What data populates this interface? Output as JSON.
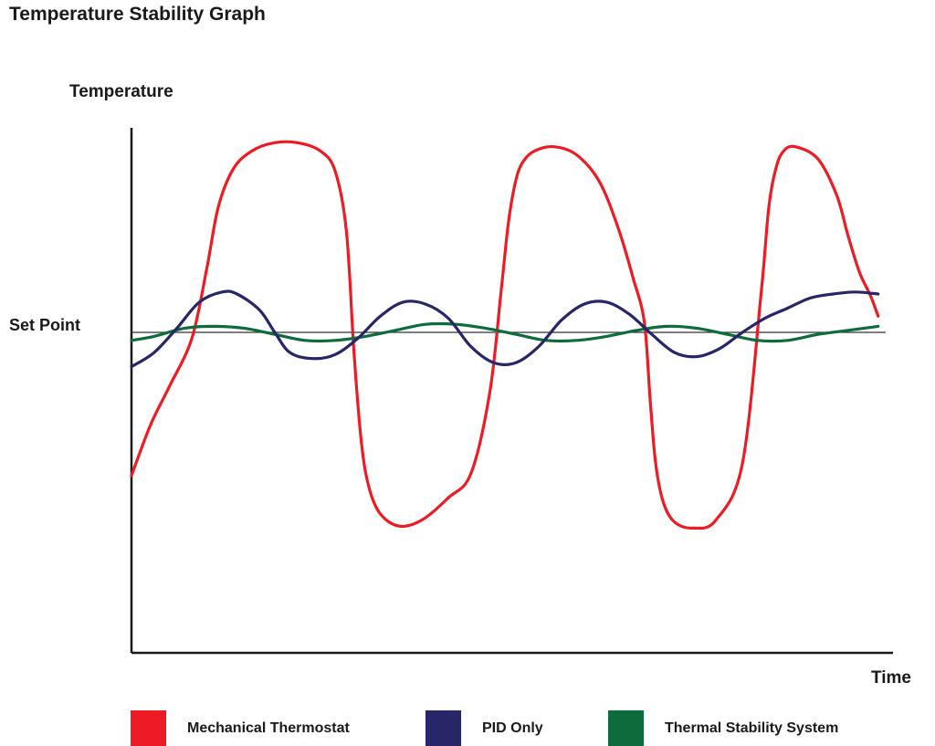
{
  "chart_data": {
    "type": "line",
    "title": "Temperature Stability Graph",
    "ylabel": "Temperature",
    "xlabel": "Time",
    "reference_line": {
      "label": "Set Point",
      "value": 0
    },
    "ylim": [
      -1.0,
      1.0
    ],
    "xlim": [
      0,
      100
    ],
    "grid": false,
    "legend_position": "bottom",
    "series": [
      {
        "name": "Mechanical Thermostat",
        "color": "#ED1C24",
        "x": [
          0,
          2.5,
          5,
          8,
          10,
          11.5,
          13.5,
          16,
          19,
          22,
          25,
          27,
          28.5,
          29.5,
          30.5,
          31.5,
          33,
          35.5,
          38.5,
          42,
          45,
          47.5,
          49,
          50,
          51,
          52,
          53.5,
          56,
          59,
          62,
          64.5,
          66.5,
          68,
          68.8,
          69.5,
          70.5,
          72,
          74.5,
          77.5,
          81,
          83.5,
          84.5,
          85.5,
          86.5,
          88,
          91,
          93.5,
          95,
          96.5,
          98,
          99
        ],
        "y": [
          -0.71,
          -0.46,
          -0.27,
          -0.03,
          0.32,
          0.62,
          0.81,
          0.9,
          0.94,
          0.94,
          0.9,
          0.8,
          0.5,
          -0.1,
          -0.55,
          -0.77,
          -0.9,
          -0.96,
          -0.93,
          -0.82,
          -0.7,
          -0.3,
          0.2,
          0.55,
          0.76,
          0.85,
          0.9,
          0.92,
          0.88,
          0.75,
          0.52,
          0.27,
          0.05,
          -0.35,
          -0.65,
          -0.84,
          -0.94,
          -0.97,
          -0.93,
          -0.65,
          0.2,
          0.62,
          0.82,
          0.9,
          0.92,
          0.86,
          0.68,
          0.48,
          0.3,
          0.18,
          0.08
        ]
      },
      {
        "name": "PID Only",
        "color": "#262668",
        "x": [
          0,
          3,
          6,
          9,
          12,
          14,
          17,
          19,
          21,
          24,
          27,
          30,
          33,
          36,
          39,
          42,
          45,
          48,
          51,
          54,
          57,
          60,
          63,
          66,
          69,
          72,
          75,
          78,
          81,
          84,
          87,
          90,
          93,
          96,
          99
        ],
        "y": [
          -0.17,
          -0.1,
          0.02,
          0.15,
          0.2,
          0.19,
          0.11,
          0.0,
          -0.1,
          -0.13,
          -0.11,
          -0.03,
          0.08,
          0.15,
          0.14,
          0.07,
          -0.07,
          -0.15,
          -0.15,
          -0.07,
          0.06,
          0.14,
          0.15,
          0.09,
          -0.01,
          -0.1,
          -0.12,
          -0.08,
          0.0,
          0.07,
          0.12,
          0.17,
          0.19,
          0.2,
          0.19
        ]
      },
      {
        "name": "Thermal Stability System",
        "color": "#0E6B3B",
        "x": [
          0,
          3,
          7,
          11,
          15,
          19,
          23,
          27,
          31,
          35,
          39,
          43,
          47,
          51,
          55,
          59,
          63,
          67,
          71,
          75,
          79,
          83,
          87,
          91,
          95,
          99
        ],
        "y": [
          -0.04,
          -0.02,
          0.02,
          0.03,
          0.02,
          -0.01,
          -0.04,
          -0.04,
          -0.02,
          0.01,
          0.04,
          0.04,
          0.02,
          -0.01,
          -0.04,
          -0.04,
          -0.02,
          0.01,
          0.03,
          0.02,
          -0.01,
          -0.04,
          -0.04,
          -0.01,
          0.01,
          0.03
        ]
      }
    ]
  }
}
